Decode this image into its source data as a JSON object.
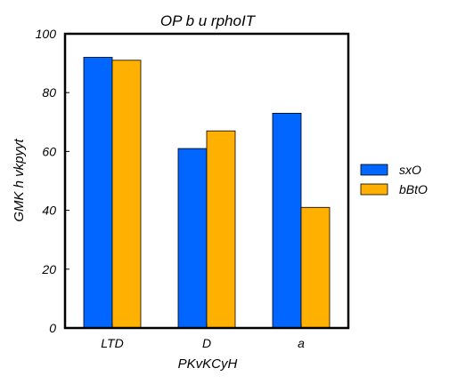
{
  "chart_data": {
    "type": "bar",
    "title": "OP b u rphoIT",
    "xlabel": "PKvKCyH",
    "ylabel": "GMK  h vkpyyt",
    "categories": [
      "LTD",
      "D",
      "a"
    ],
    "series": [
      {
        "name": "sxO",
        "color": "#0066ff",
        "values": [
          92,
          61,
          73
        ]
      },
      {
        "name": "bBtO",
        "color": "#ffb000",
        "values": [
          91,
          67,
          41
        ]
      }
    ],
    "ylim": [
      0,
      100
    ],
    "yticks": [
      0,
      20,
      40,
      60,
      80,
      100
    ],
    "grid": false,
    "legend_position": "right"
  }
}
